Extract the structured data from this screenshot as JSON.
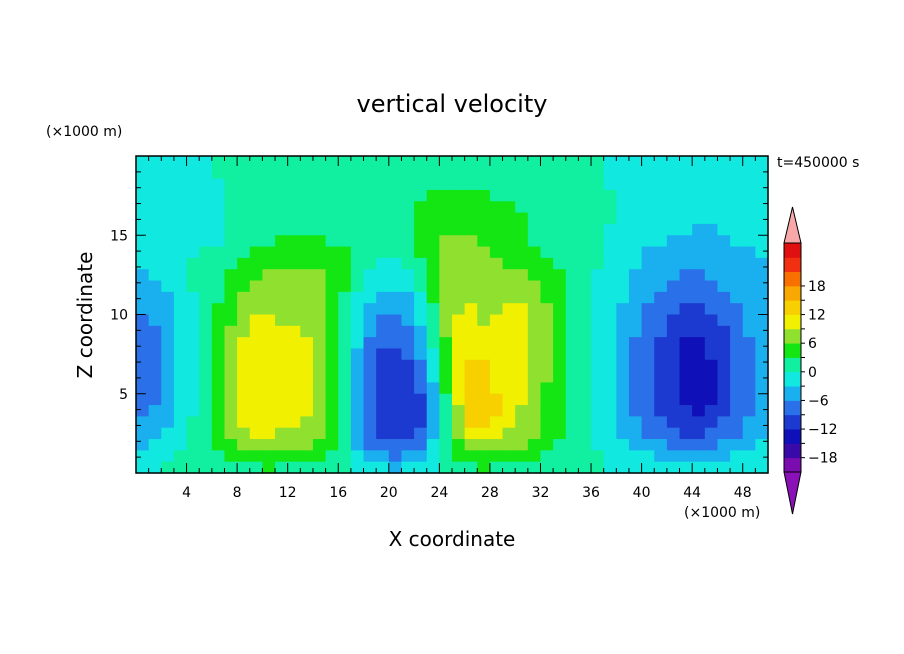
{
  "chart_data": {
    "type": "heatmap",
    "title": "vertical velocity",
    "xlabel": "X coordinate",
    "ylabel": "Z coordinate",
    "x_unit": "(×1000 m)",
    "y_unit": "(×1000 m)",
    "time_label": "t=450000 s",
    "xlim": [
      0,
      50
    ],
    "ylim": [
      0,
      20
    ],
    "x_ticks": [
      4,
      8,
      12,
      16,
      20,
      24,
      28,
      32,
      36,
      40,
      44,
      48
    ],
    "y_ticks": [
      5,
      10,
      15
    ],
    "x_tick_labels": [
      "4",
      "8",
      "12",
      "16",
      "20",
      "24",
      "28",
      "32",
      "36",
      "40",
      "44",
      "48"
    ],
    "y_tick_labels": [
      "5",
      "10",
      "15"
    ],
    "colorbar": {
      "levels": [
        -21,
        -18,
        -15,
        -12,
        -9,
        -6,
        -3,
        0,
        3,
        6,
        9,
        12,
        15,
        18,
        21
      ],
      "tick_values": [
        -18,
        -12,
        -6,
        0,
        6,
        12,
        18
      ],
      "tick_labels": [
        "−18",
        "−12",
        "−6",
        "0",
        "6",
        "12",
        "18"
      ],
      "colors": [
        "#7a0cb0",
        "#3a0aa8",
        "#1010b8",
        "#1c3ad0",
        "#2a70e8",
        "#1ab0f0",
        "#10e8e0",
        "#10f0a0",
        "#14e614",
        "#90e030",
        "#f0f000",
        "#f8d000",
        "#f8a800",
        "#f87000",
        "#f03010",
        "#e01010"
      ],
      "under_color": "#8a10b8",
      "over_color": "#f8a8a8"
    },
    "cells": [
      [
        -2,
        -1,
        -1,
        -1,
        -1,
        -1,
        0,
        0,
        1,
        1,
        1,
        1,
        1,
        1,
        1,
        1,
        1,
        1,
        1,
        1,
        1,
        1,
        1,
        1,
        1,
        1,
        1,
        1,
        1,
        1,
        1,
        1,
        1,
        1,
        1,
        0,
        0,
        -1,
        -1,
        -1,
        -1,
        -1,
        -2,
        -2,
        -2,
        -2,
        -2,
        -2,
        -2,
        -1
      ],
      [
        -2,
        -2,
        -1,
        -1,
        -1,
        -1,
        0,
        0,
        1,
        1,
        1,
        1,
        1,
        1,
        1,
        1,
        1,
        1,
        1,
        1,
        1,
        1,
        1,
        1,
        1,
        1,
        1,
        1,
        1,
        1,
        1,
        1,
        1,
        1,
        1,
        0,
        0,
        -1,
        -1,
        -1,
        -1,
        -2,
        -2,
        -2,
        -2,
        -2,
        -2,
        -2,
        -2,
        -1
      ],
      [
        -2,
        -2,
        -2,
        -2,
        -2,
        -1,
        -1,
        0,
        0,
        1,
        1,
        1,
        1,
        1,
        1,
        1,
        1,
        1,
        1,
        1,
        1,
        1,
        1,
        1,
        2,
        2,
        2,
        2,
        2,
        1,
        1,
        1,
        1,
        1,
        1,
        0,
        0,
        -1,
        -1,
        -1,
        -1,
        -2,
        -2,
        -2,
        -2,
        -2,
        -2,
        -2,
        -2,
        -1
      ],
      [
        -2,
        -2,
        -3,
        -3,
        -2,
        -1,
        -1,
        0,
        0,
        1,
        1,
        1,
        1,
        1,
        1,
        1,
        1,
        1,
        1,
        1,
        1,
        2,
        2,
        3,
        3,
        3,
        3,
        3,
        2,
        2,
        2,
        1,
        1,
        1,
        1,
        1,
        0,
        0,
        -1,
        -1,
        -1,
        -2,
        -2,
        -2,
        -3,
        -3,
        -2,
        -2,
        -2,
        -1
      ],
      [
        -2,
        -2,
        -3,
        -3,
        -3,
        -2,
        -1,
        0,
        0,
        1,
        1,
        1,
        1,
        1,
        1,
        1,
        1,
        1,
        1,
        1,
        1,
        2,
        3,
        3,
        3,
        3,
        3,
        3,
        3,
        3,
        2,
        2,
        1,
        1,
        1,
        1,
        0,
        0,
        -1,
        -1,
        -2,
        -2,
        -3,
        -3,
        -3,
        -3,
        -3,
        -2,
        -2,
        -1
      ],
      [
        -2,
        -3,
        -3,
        -3,
        -3,
        -2,
        -1,
        0,
        0,
        1,
        1,
        1,
        1,
        1,
        1,
        1,
        2,
        2,
        1,
        1,
        1,
        2,
        3,
        4,
        5,
        5,
        5,
        4,
        4,
        3,
        3,
        2,
        2,
        1,
        1,
        1,
        0,
        0,
        -1,
        -1,
        -2,
        -3,
        -3,
        -3,
        -3,
        -3,
        -3,
        -3,
        -2,
        -2
      ],
      [
        -2,
        -3,
        -3,
        -3,
        -2,
        -2,
        -1,
        0,
        1,
        1,
        1,
        1,
        1,
        1,
        1,
        1,
        1,
        1,
        1,
        1,
        1,
        2,
        3,
        5,
        5,
        5,
        5,
        5,
        5,
        4,
        3,
        2,
        2,
        1,
        1,
        1,
        0,
        -1,
        -1,
        -2,
        -2,
        -3,
        -3,
        -3,
        -4,
        -4,
        -3,
        -3,
        -3,
        -2
      ],
      [
        -2,
        -2,
        -2,
        -2,
        -2,
        -1,
        -1,
        0,
        1,
        1,
        2,
        3,
        3,
        3,
        3,
        2,
        2,
        1,
        1,
        1,
        1,
        2,
        4,
        5,
        6,
        6,
        6,
        5,
        5,
        4,
        3,
        2,
        2,
        1,
        1,
        1,
        0,
        -1,
        -2,
        -2,
        -3,
        -3,
        -4,
        -5,
        -5,
        -4,
        -4,
        -3,
        -3,
        -3
      ],
      [
        -2,
        -2,
        -2,
        -1,
        -1,
        0,
        0,
        1,
        2,
        3,
        4,
        4,
        4,
        4,
        4,
        4,
        3,
        2,
        1,
        0,
        0,
        1,
        3,
        5,
        6,
        7,
        7,
        6,
        5,
        4,
        4,
        3,
        2,
        2,
        1,
        1,
        0,
        -1,
        -2,
        -3,
        -4,
        -4,
        -5,
        -5,
        -5,
        -5,
        -4,
        -4,
        -4,
        -3
      ],
      [
        -3,
        -2,
        -2,
        -1,
        0,
        1,
        1,
        2,
        3,
        4,
        5,
        5,
        5,
        5,
        5,
        5,
        4,
        2,
        0,
        -1,
        -1,
        0,
        2,
        5,
        7,
        8,
        7,
        6,
        6,
        5,
        5,
        4,
        3,
        2,
        1,
        0,
        0,
        -1,
        -2,
        -3,
        -4,
        -5,
        -5,
        -6,
        -6,
        -5,
        -5,
        -4,
        -4,
        -4
      ],
      [
        -4,
        -3,
        -2,
        -1,
        0,
        1,
        2,
        3,
        4,
        5,
        6,
        6,
        6,
        6,
        6,
        5,
        4,
        1,
        -1,
        -2,
        -2,
        -1,
        1,
        4,
        7,
        8,
        8,
        7,
        7,
        6,
        6,
        5,
        4,
        3,
        1,
        0,
        -1,
        -1,
        -2,
        -4,
        -5,
        -6,
        -6,
        -7,
        -7,
        -6,
        -6,
        -5,
        -4,
        -4
      ],
      [
        -5,
        -4,
        -3,
        -1,
        0,
        1,
        2,
        3,
        5,
        6,
        7,
        7,
        7,
        6,
        6,
        5,
        3,
        0,
        -2,
        -3,
        -3,
        -2,
        0,
        3,
        7,
        8,
        8,
        7,
        7,
        7,
        7,
        6,
        5,
        3,
        2,
        1,
        -1,
        -2,
        -3,
        -4,
        -5,
        -6,
        -7,
        -8,
        -8,
        -7,
        -6,
        -5,
        -5,
        -4
      ],
      [
        -6,
        -5,
        -4,
        -2,
        -1,
        1,
        2,
        4,
        6,
        7,
        8,
        7,
        7,
        7,
        7,
        5,
        2,
        -1,
        -3,
        -5,
        -5,
        -4,
        -1,
        3,
        7,
        8,
        8,
        7,
        8,
        8,
        8,
        7,
        5,
        4,
        2,
        1,
        -1,
        -2,
        -3,
        -5,
        -6,
        -7,
        -8,
        -9,
        -9,
        -8,
        -7,
        -6,
        -5,
        -5
      ],
      [
        -6,
        -5,
        -4,
        -2,
        -1,
        1,
        3,
        5,
        7,
        8,
        8,
        8,
        8,
        8,
        7,
        5,
        2,
        -2,
        -4,
        -6,
        -6,
        -4,
        -2,
        2,
        6,
        8,
        9,
        8,
        8,
        9,
        9,
        8,
        6,
        4,
        2,
        1,
        -1,
        -3,
        -4,
        -5,
        -7,
        -8,
        -9,
        -10,
        -10,
        -9,
        -8,
        -7,
        -6,
        -5
      ],
      [
        -7,
        -6,
        -4,
        -2,
        -1,
        1,
        3,
        5,
        7,
        9,
        9,
        8,
        8,
        8,
        7,
        5,
        2,
        -2,
        -5,
        -7,
        -7,
        -6,
        -3,
        1,
        6,
        9,
        9,
        8,
        9,
        9,
        9,
        8,
        6,
        4,
        2,
        1,
        -1,
        -3,
        -4,
        -6,
        -7,
        -9,
        -10,
        -11,
        -11,
        -10,
        -9,
        -7,
        -6,
        -5
      ],
      [
        -8,
        -7,
        -5,
        -3,
        -1,
        1,
        3,
        6,
        8,
        9,
        9,
        9,
        9,
        8,
        7,
        5,
        1,
        -3,
        -6,
        -8,
        -8,
        -7,
        -4,
        1,
        6,
        9,
        10,
        9,
        9,
        10,
        10,
        8,
        6,
        4,
        2,
        1,
        -1,
        -3,
        -5,
        -6,
        -8,
        -9,
        -11,
        -12,
        -12,
        -11,
        -10,
        -8,
        -6,
        -5
      ],
      [
        -8,
        -7,
        -5,
        -3,
        -1,
        1,
        3,
        6,
        9,
        10,
        10,
        9,
        9,
        9,
        8,
        5,
        1,
        -3,
        -7,
        -9,
        -9,
        -8,
        -5,
        0,
        5,
        9,
        10,
        10,
        10,
        10,
        10,
        8,
        6,
        4,
        2,
        1,
        -1,
        -3,
        -5,
        -7,
        -8,
        -10,
        -11,
        -13,
        -13,
        -12,
        -10,
        -8,
        -7,
        -5
      ],
      [
        -9,
        -7,
        -5,
        -3,
        -1,
        1,
        4,
        7,
        9,
        10,
        10,
        10,
        10,
        9,
        8,
        5,
        1,
        -4,
        -8,
        -10,
        -10,
        -9,
        -6,
        -1,
        4,
        9,
        11,
        11,
        10,
        10,
        10,
        8,
        6,
        4,
        2,
        1,
        -1,
        -3,
        -5,
        -7,
        -9,
        -10,
        -12,
        -13,
        -13,
        -12,
        -11,
        -9,
        -7,
        -5
      ],
      [
        -9,
        -8,
        -6,
        -3,
        -1,
        1,
        4,
        7,
        9,
        10,
        11,
        10,
        10,
        9,
        8,
        5,
        1,
        -4,
        -8,
        -10,
        -11,
        -10,
        -7,
        -2,
        4,
        9,
        12,
        12,
        11,
        10,
        10,
        8,
        6,
        4,
        2,
        1,
        -1,
        -3,
        -5,
        -7,
        -9,
        -11,
        -12,
        -13,
        -14,
        -13,
        -11,
        -9,
        -7,
        -5
      ],
      [
        -9,
        -8,
        -6,
        -3,
        -1,
        1,
        4,
        7,
        9,
        11,
        11,
        10,
        10,
        9,
        8,
        5,
        1,
        -5,
        -9,
        -11,
        -12,
        -11,
        -8,
        -3,
        3,
        9,
        12,
        13,
        11,
        10,
        9,
        8,
        6,
        4,
        2,
        1,
        -1,
        -3,
        -5,
        -7,
        -9,
        -11,
        -12,
        -14,
        -14,
        -13,
        -11,
        -9,
        -7,
        -5
      ],
      [
        -8,
        -7,
        -5,
        -3,
        -1,
        1,
        4,
        7,
        10,
        11,
        11,
        10,
        10,
        9,
        8,
        5,
        1,
        -5,
        -9,
        -11,
        -12,
        -12,
        -9,
        -4,
        3,
        9,
        13,
        13,
        11,
        10,
        9,
        7,
        5,
        4,
        2,
        1,
        -1,
        -3,
        -5,
        -7,
        -9,
        -11,
        -12,
        -14,
        -14,
        -13,
        -11,
        -9,
        -7,
        -5
      ],
      [
        -8,
        -7,
        -5,
        -3,
        -1,
        1,
        4,
        7,
        10,
        11,
        11,
        10,
        10,
        9,
        7,
        5,
        1,
        -5,
        -9,
        -11,
        -12,
        -12,
        -10,
        -5,
        2,
        9,
        13,
        14,
        12,
        10,
        9,
        7,
        5,
        3,
        2,
        1,
        -1,
        -3,
        -5,
        -7,
        -9,
        -11,
        -12,
        -13,
        -14,
        -13,
        -11,
        -9,
        -7,
        -5
      ],
      [
        -7,
        -6,
        -5,
        -3,
        -1,
        1,
        4,
        7,
        10,
        11,
        11,
        10,
        10,
        9,
        7,
        5,
        1,
        -5,
        -9,
        -11,
        -12,
        -12,
        -10,
        -5,
        2,
        8,
        13,
        14,
        12,
        10,
        8,
        7,
        5,
        3,
        2,
        1,
        -1,
        -3,
        -5,
        -7,
        -8,
        -10,
        -11,
        -12,
        -13,
        -12,
        -10,
        -8,
        -7,
        -5
      ],
      [
        -6,
        -5,
        -4,
        -2,
        0,
        2,
        4,
        7,
        9,
        10,
        10,
        9,
        9,
        8,
        7,
        4,
        1,
        -5,
        -9,
        -11,
        -12,
        -12,
        -10,
        -5,
        2,
        8,
        12,
        13,
        11,
        9,
        8,
        6,
        5,
        3,
        2,
        1,
        -1,
        -3,
        -4,
        -6,
        -8,
        -9,
        -10,
        -11,
        -12,
        -11,
        -9,
        -8,
        -6,
        -5
      ],
      [
        -5,
        -4,
        -3,
        -2,
        0,
        2,
        4,
        6,
        8,
        9,
        9,
        8,
        8,
        7,
        6,
        4,
        0,
        -5,
        -8,
        -10,
        -11,
        -11,
        -9,
        -4,
        2,
        7,
        10,
        11,
        10,
        8,
        7,
        6,
        4,
        3,
        1,
        0,
        -1,
        -2,
        -4,
        -5,
        -7,
        -8,
        -9,
        -10,
        -10,
        -9,
        -8,
        -7,
        -5,
        -4
      ],
      [
        -4,
        -3,
        -2,
        -1,
        0,
        2,
        3,
        5,
        6,
        7,
        7,
        7,
        6,
        6,
        5,
        3,
        0,
        -4,
        -7,
        -8,
        -9,
        -9,
        -7,
        -3,
        2,
        5,
        7,
        8,
        7,
        6,
        6,
        5,
        4,
        2,
        1,
        0,
        -1,
        -2,
        -3,
        -4,
        -5,
        -6,
        -7,
        -8,
        -8,
        -7,
        -6,
        -5,
        -4,
        -3
      ],
      [
        -2,
        -2,
        -1,
        0,
        1,
        2,
        2,
        3,
        4,
        5,
        5,
        5,
        4,
        4,
        3,
        2,
        0,
        -3,
        -5,
        -6,
        -7,
        -6,
        -5,
        -2,
        1,
        3,
        5,
        5,
        5,
        4,
        4,
        3,
        2,
        2,
        1,
        0,
        0,
        -1,
        -2,
        -3,
        -3,
        -4,
        -4,
        -5,
        -5,
        -5,
        -4,
        -3,
        -3,
        -2
      ],
      [
        -1,
        -1,
        0,
        0,
        1,
        1,
        1,
        2,
        2,
        2,
        3,
        2,
        2,
        2,
        2,
        1,
        0,
        -1,
        -3,
        -3,
        -4,
        -3,
        -2,
        -1,
        1,
        2,
        2,
        3,
        2,
        2,
        2,
        2,
        1,
        1,
        0,
        0,
        0,
        -1,
        -1,
        -1,
        -2,
        -2,
        -2,
        -2,
        -2,
        -2,
        -2,
        -2,
        -1,
        -1
      ]
    ]
  }
}
